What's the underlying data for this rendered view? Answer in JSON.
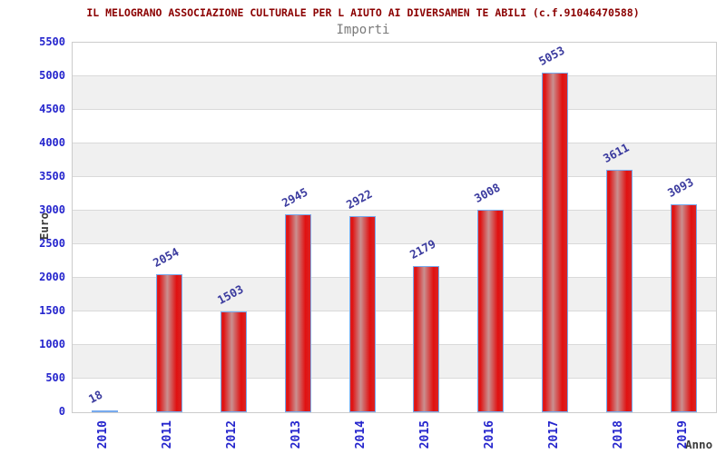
{
  "chart_data": {
    "type": "bar",
    "title": "IL MELOGRANO ASSOCIAZIONE CULTURALE PER L AIUTO AI DIVERSAMEN TE ABILI (c.f.91046470588)",
    "subtitle": "Importi",
    "xlabel": "Anno",
    "ylabel": "Euro",
    "categories": [
      "2010",
      "2011",
      "2012",
      "2013",
      "2014",
      "2015",
      "2016",
      "2017",
      "2018",
      "2019"
    ],
    "values": [
      18,
      2054,
      1503,
      2945,
      2922,
      2179,
      3008,
      5053,
      3611,
      3093
    ],
    "ylim": [
      0,
      5500
    ],
    "ytick_step": 500,
    "yticks": [
      "0",
      "500",
      "1000",
      "1500",
      "2000",
      "2500",
      "3000",
      "3500",
      "4000",
      "4500",
      "5000",
      "5500"
    ],
    "grid": "horizontal-alternating-bands",
    "legend": "none",
    "colors": {
      "title": "#8b0000",
      "subtitle": "#7a7a7a",
      "tick_label": "#2525cd",
      "value_label": "#3a3a9e",
      "axis_title": "#3c3c3c",
      "bar_border": "#77aaee",
      "bar_red": "#e01010",
      "bar_red_edge": "#dc2424",
      "bar_highlight": "#c99090",
      "band_gray": "#f0f0f0",
      "gridline": "#d9d9d9",
      "plot_border": "#cccccc",
      "background": "#ffffff"
    }
  }
}
